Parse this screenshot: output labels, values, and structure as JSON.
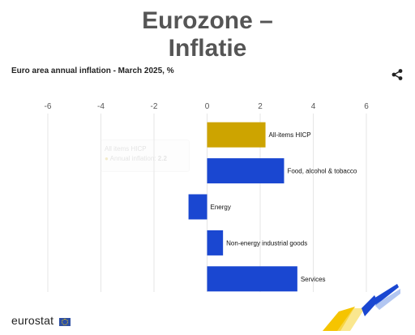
{
  "header": {
    "title_line1": "Eurozone –",
    "title_line2": "Inflatie",
    "subtitle": "Euro area annual inflation - March 2025, %"
  },
  "chart_data": {
    "type": "bar",
    "orientation": "horizontal",
    "categories": [
      "All-items HICP",
      "Food, alcohol & tobacco",
      "Energy",
      "Non-energy industrial goods",
      "Services"
    ],
    "values": [
      2.2,
      2.9,
      -0.7,
      0.6,
      3.4
    ],
    "colors": [
      "#cda400",
      "#1a47d1",
      "#1a47d1",
      "#1a47d1",
      "#1a47d1"
    ],
    "xlim": [
      -6,
      6
    ],
    "xticks": [
      -6,
      -4,
      -2,
      0,
      2,
      4,
      6
    ],
    "tick_labels": [
      "-6",
      "-4",
      "-2",
      "0",
      "2",
      "4",
      "6"
    ],
    "grid": true,
    "axis_position": "top"
  },
  "tooltip": {
    "category": "All items HICP",
    "series_label": "Annual inflation",
    "value": "2.2"
  },
  "footer": {
    "brand": "eurostat"
  },
  "icons": {
    "share": "share-icon",
    "flag": "eu-flag-icon"
  }
}
